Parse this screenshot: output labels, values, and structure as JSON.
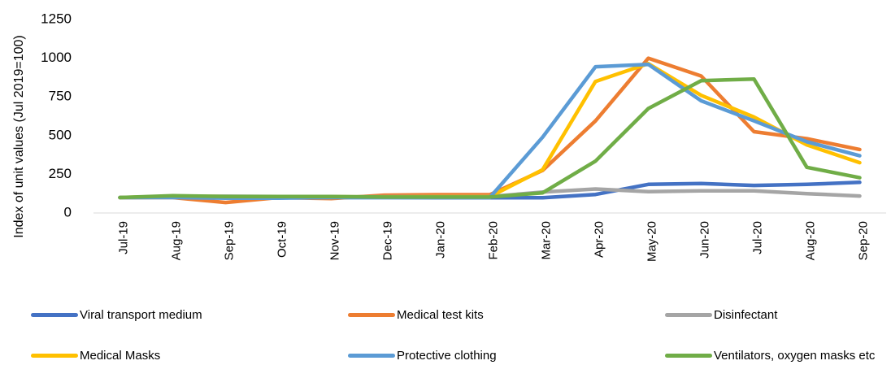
{
  "chart_data": {
    "type": "line",
    "title": "",
    "xlabel": "",
    "ylabel": "Index of unit values (Jul 2019=100)",
    "ylim": [
      0,
      1250
    ],
    "yticks": [
      "0",
      "250",
      "500",
      "750",
      "1000",
      "1250"
    ],
    "grid": false,
    "legend_position": "bottom",
    "categories": [
      "Jul-19",
      "Aug-19",
      "Sep-19",
      "Oct-19",
      "Nov-19",
      "Dec-19",
      "Jan-20",
      "Feb-20",
      "Mar-20",
      "Apr-20",
      "May-20",
      "Jun-20",
      "Jul-20",
      "Aug-20",
      "Sep-20"
    ],
    "series": [
      {
        "name": "Viral transport medium",
        "color": "#4472C4",
        "values": [
          100,
          102,
          100,
          98,
          100,
          100,
          98,
          98,
          98,
          120,
          185,
          190,
          178,
          185,
          198
        ]
      },
      {
        "name": "Medical test kits",
        "color": "#ED7D31",
        "values": [
          100,
          100,
          68,
          100,
          93,
          115,
          118,
          118,
          275,
          595,
          1000,
          885,
          525,
          480,
          410
        ]
      },
      {
        "name": "Disinfectant",
        "color": "#A5A5A5",
        "values": [
          100,
          105,
          108,
          106,
          103,
          105,
          106,
          106,
          135,
          155,
          138,
          143,
          143,
          125,
          110
        ]
      },
      {
        "name": "Medical Masks",
        "color": "#FFC000",
        "values": [
          100,
          108,
          106,
          102,
          105,
          103,
          105,
          105,
          280,
          850,
          965,
          760,
          620,
          440,
          325
        ]
      },
      {
        "name": "Protective clothing",
        "color": "#5B9BD5",
        "values": [
          100,
          100,
          96,
          96,
          100,
          100,
          100,
          100,
          490,
          945,
          960,
          725,
          595,
          460,
          370
        ]
      },
      {
        "name": "Ventilators, oxygen masks etc",
        "color": "#70AD47",
        "values": [
          100,
          112,
          106,
          106,
          106,
          103,
          103,
          103,
          130,
          335,
          675,
          855,
          865,
          295,
          228
        ]
      }
    ]
  }
}
